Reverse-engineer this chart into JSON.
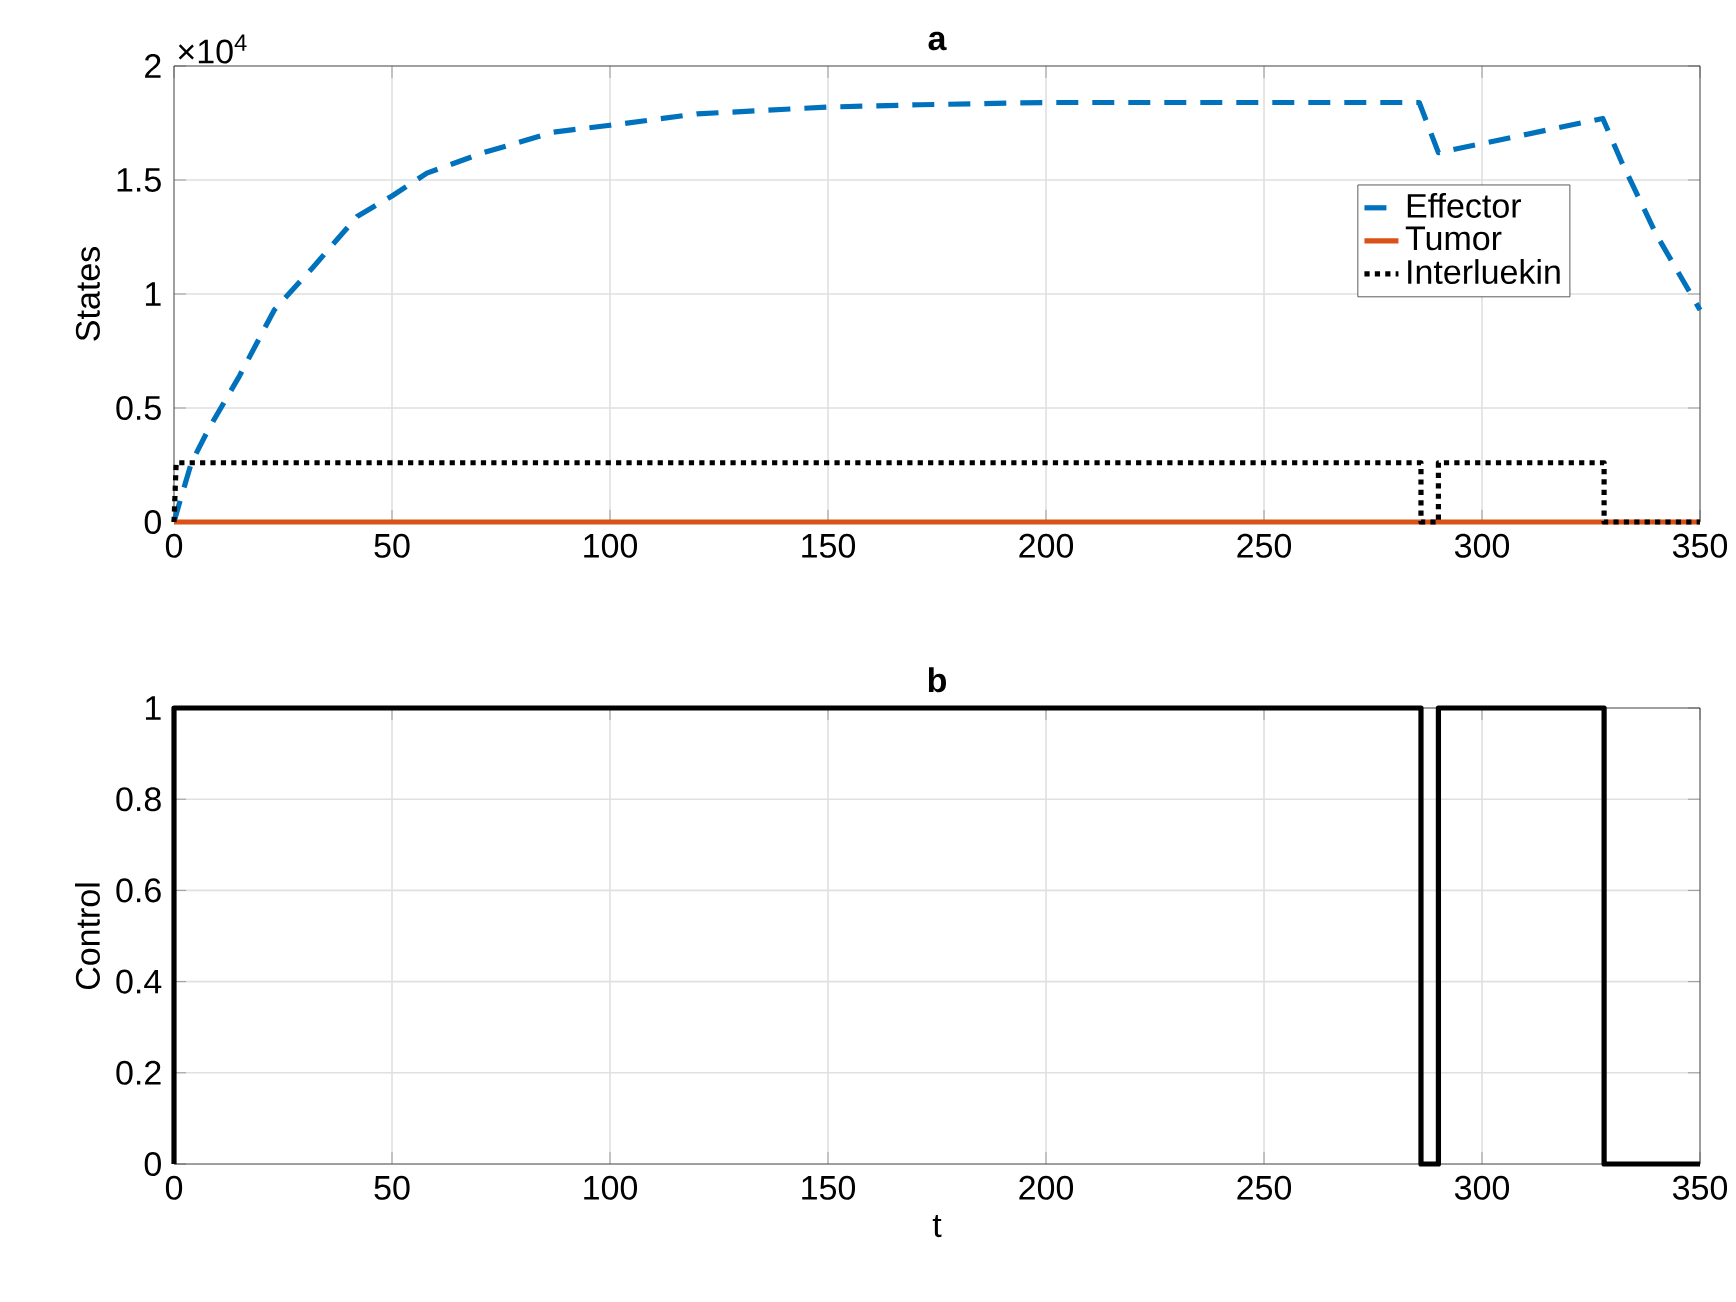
{
  "chart_data": [
    {
      "type": "line",
      "title": "a",
      "ylabel": "States",
      "annotations": [
        "×10$^{4}$"
      ],
      "xlim": [
        0,
        350
      ],
      "xticks": [
        0,
        50,
        100,
        150,
        200,
        250,
        300,
        350
      ],
      "ylim": [
        0,
        2
      ],
      "yticks": [
        0,
        0.5,
        1,
        1.5,
        2
      ],
      "grid": true,
      "legend": "right",
      "series": [
        {
          "name": "Effector",
          "color": "#0072bd",
          "line_style": "dashed",
          "x": [
            0,
            1.5,
            4,
            8,
            15,
            23,
            32,
            42,
            50,
            58,
            71,
            87,
            100,
            120,
            150,
            171,
            200,
            250,
            285.6,
            290,
            327.7,
            332,
            340,
            350
          ],
          "values": [
            0,
            0.1,
            0.26,
            0.41,
            0.64,
            0.93,
            1.12,
            1.34,
            1.43,
            1.53,
            1.62,
            1.71,
            1.74,
            1.79,
            1.82,
            1.83,
            1.84,
            1.84,
            1.84,
            1.62,
            1.77,
            1.58,
            1.26,
            0.93
          ]
        },
        {
          "name": "Tumor",
          "color": "#d95319",
          "line_style": "solid",
          "x": [
            0,
            350
          ],
          "values": [
            0,
            0
          ]
        },
        {
          "name": "Interluekin",
          "color": "#000000",
          "line_style": "dotted",
          "x": [
            0,
            0.5,
            286,
            286,
            290,
            290,
            328,
            328,
            350
          ],
          "values": [
            0,
            0.26,
            0.26,
            0,
            0,
            0.26,
            0.26,
            0,
            0
          ]
        }
      ]
    },
    {
      "type": "line",
      "title": "b",
      "xlabel": "t",
      "ylabel": "Control",
      "xlim": [
        0,
        350
      ],
      "xticks": [
        0,
        50,
        100,
        150,
        200,
        250,
        300,
        350
      ],
      "ylim": [
        0,
        1
      ],
      "yticks": [
        0,
        0.2,
        0.4,
        0.6,
        0.8,
        1
      ],
      "grid": true,
      "series": [
        {
          "color": "#000000",
          "line_style": "solid",
          "x": [
            0,
            0,
            286,
            286,
            290,
            290,
            328,
            328,
            350
          ],
          "values": [
            0,
            1,
            1,
            0,
            0,
            1,
            1,
            0,
            0
          ]
        }
      ]
    }
  ]
}
